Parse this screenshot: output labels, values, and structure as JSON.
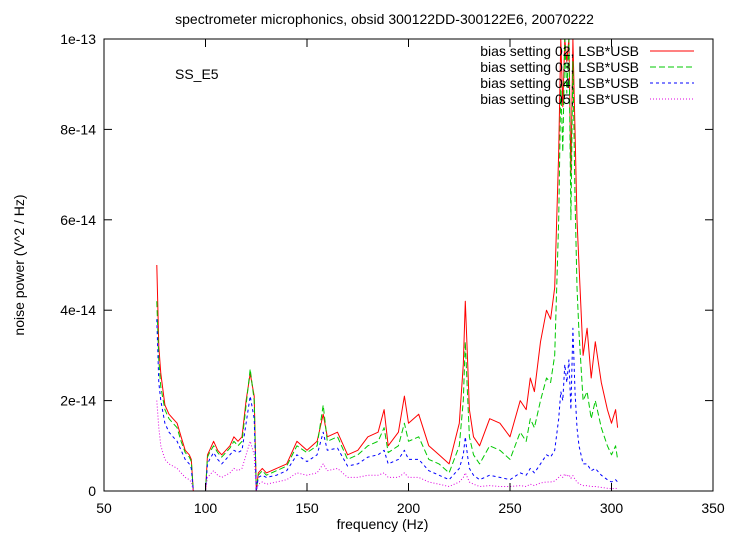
{
  "chart_data": {
    "type": "line",
    "title": "spectrometer microphonics, obsid 300122DD-300122E6, 20070222",
    "annotation": "SS_E5",
    "xlabel": "frequency (Hz)",
    "ylabel": "noise power (V^2 / Hz)",
    "xlim": [
      50,
      350
    ],
    "ylim": [
      0,
      1e-13
    ],
    "x_ticks": [
      50,
      100,
      150,
      200,
      250,
      300,
      350
    ],
    "x_tick_labels": [
      "50",
      "100",
      "150",
      "200",
      "250",
      "300",
      "350"
    ],
    "y_ticks": [
      0,
      2e-14,
      4e-14,
      6e-14,
      8e-14,
      1e-13
    ],
    "y_tick_labels": [
      "0",
      "2e-14",
      "4e-14",
      "6e-14",
      "8e-14",
      "1e-13"
    ],
    "grid": false,
    "legend_position": "top-right",
    "series": [
      {
        "name": "bias setting 02, LSB*USB",
        "color": "#ff0000",
        "dash": "solid",
        "x": [
          76,
          77,
          78,
          80,
          82,
          84,
          86,
          88,
          90,
          92,
          93,
          94,
          96,
          98,
          100,
          101,
          102,
          104,
          106,
          108,
          110,
          112,
          114,
          116,
          118,
          120,
          122,
          124,
          125,
          126,
          128,
          130,
          135,
          140,
          145,
          150,
          155,
          158,
          160,
          165,
          170,
          175,
          180,
          185,
          188,
          190,
          195,
          198,
          200,
          205,
          210,
          215,
          220,
          225,
          227,
          228,
          229,
          230,
          232,
          235,
          240,
          245,
          250,
          255,
          258,
          260,
          262,
          265,
          268,
          270,
          272,
          274,
          275,
          276,
          277,
          278,
          279,
          280,
          281,
          282,
          283,
          284,
          286,
          288,
          290,
          292,
          295,
          298,
          300,
          302,
          303
        ],
        "y": [
          5e-14,
          3.2e-14,
          2.6e-14,
          1.9e-14,
          1.7e-14,
          1.6e-14,
          1.5e-14,
          1.2e-14,
          9e-15,
          8e-15,
          7e-15,
          0,
          0,
          0,
          0,
          8e-15,
          9e-15,
          1.1e-14,
          9e-15,
          8e-15,
          9e-15,
          1e-14,
          1.2e-14,
          1.1e-14,
          1.2e-14,
          2e-14,
          2.6e-14,
          2.1e-14,
          0,
          4e-15,
          5e-15,
          4e-15,
          5e-15,
          6e-15,
          1.1e-14,
          9e-15,
          1.1e-14,
          1.7e-14,
          1.2e-14,
          1.3e-14,
          8e-15,
          9e-15,
          1.2e-14,
          1.3e-14,
          1.8e-14,
          1e-14,
          1.3e-14,
          2.1e-14,
          1.5e-14,
          1.7e-14,
          1e-14,
          8e-15,
          6e-15,
          1.5e-14,
          2.8e-14,
          4.2e-14,
          3e-14,
          1.8e-14,
          1.2e-14,
          1e-14,
          1.6e-14,
          1.5e-14,
          1.2e-14,
          2e-14,
          1.8e-14,
          2.5e-14,
          2.2e-14,
          3.3e-14,
          4e-14,
          3.8e-14,
          4.5e-14,
          7.5e-14,
          1e-13,
          8.5e-14,
          1e-13,
          9.5e-14,
          1e-13,
          7e-14,
          1e-13,
          8e-14,
          6e-14,
          5e-14,
          3e-14,
          3.6e-14,
          2.5e-14,
          3.3e-14,
          2.4e-14,
          1.8e-14,
          1.5e-14,
          1.8e-14,
          1.4e-14
        ]
      },
      {
        "name": "bias setting 03, LSB*USB",
        "color": "#00c800",
        "dash": "6,3",
        "x": [
          76,
          77,
          78,
          80,
          82,
          84,
          86,
          88,
          90,
          92,
          93,
          94,
          96,
          98,
          100,
          101,
          102,
          104,
          106,
          108,
          110,
          112,
          114,
          116,
          118,
          120,
          122,
          124,
          125,
          126,
          128,
          130,
          135,
          140,
          145,
          150,
          155,
          158,
          160,
          165,
          170,
          175,
          180,
          185,
          188,
          190,
          195,
          198,
          200,
          205,
          210,
          215,
          220,
          225,
          227,
          228,
          229,
          230,
          232,
          235,
          240,
          245,
          250,
          255,
          258,
          260,
          262,
          265,
          268,
          270,
          272,
          274,
          275,
          276,
          277,
          278,
          279,
          280,
          281,
          282,
          283,
          284,
          286,
          288,
          290,
          292,
          295,
          298,
          300,
          302,
          303
        ],
        "y": [
          4.2e-14,
          2.9e-14,
          2.3e-14,
          1.8e-14,
          1.6e-14,
          1.5e-14,
          1.4e-14,
          1.1e-14,
          8.5e-15,
          7.5e-15,
          6.5e-15,
          0,
          0,
          0,
          0,
          7.5e-15,
          8.5e-15,
          1e-14,
          8.5e-15,
          7.5e-15,
          8.5e-15,
          9.5e-15,
          1.1e-14,
          1e-14,
          1.1e-14,
          1.9e-14,
          2.7e-14,
          2e-14,
          0,
          3.5e-15,
          4.5e-15,
          3.5e-15,
          4.5e-15,
          5.5e-15,
          1e-14,
          8.5e-15,
          1e-14,
          1.9e-14,
          1.1e-14,
          1.2e-14,
          7e-15,
          8e-15,
          1e-14,
          1.1e-14,
          1.4e-14,
          8.5e-15,
          1e-14,
          1.5e-14,
          1.1e-14,
          1.2e-14,
          7e-15,
          6e-15,
          4e-15,
          1e-14,
          2e-14,
          3.3e-14,
          2.2e-14,
          1.2e-14,
          8e-15,
          6e-15,
          1e-14,
          9e-15,
          7e-15,
          1.3e-14,
          1.1e-14,
          1.6e-14,
          1.4e-14,
          2e-14,
          2.5e-14,
          2.4e-14,
          3e-14,
          6e-14,
          9e-14,
          7.5e-14,
          1e-13,
          8.8e-14,
          1e-13,
          6e-14,
          9.5e-14,
          6.5e-14,
          4.5e-14,
          3.5e-14,
          2e-14,
          2.2e-14,
          1.6e-14,
          2e-14,
          1.4e-14,
          1e-14,
          8e-15,
          1e-14,
          7e-15
        ]
      },
      {
        "name": "bias setting 04, LSB*USB",
        "color": "#0000ff",
        "dash": "3,3",
        "x": [
          76,
          77,
          78,
          80,
          82,
          84,
          86,
          88,
          90,
          92,
          93,
          94,
          96,
          98,
          100,
          101,
          102,
          104,
          106,
          108,
          110,
          112,
          114,
          116,
          118,
          120,
          122,
          124,
          125,
          126,
          128,
          130,
          135,
          140,
          145,
          150,
          155,
          158,
          160,
          165,
          170,
          175,
          180,
          185,
          188,
          190,
          195,
          198,
          200,
          205,
          210,
          215,
          220,
          225,
          227,
          228,
          229,
          230,
          232,
          235,
          240,
          245,
          250,
          255,
          258,
          260,
          262,
          265,
          268,
          270,
          272,
          274,
          275,
          276,
          277,
          278,
          279,
          280,
          281,
          282,
          283,
          284,
          286,
          288,
          290,
          292,
          295,
          298,
          300,
          302,
          303
        ],
        "y": [
          3.8e-14,
          2.4e-14,
          2e-14,
          1.5e-14,
          1.3e-14,
          1.2e-14,
          1.1e-14,
          9e-15,
          7e-15,
          6e-15,
          5e-15,
          0,
          0,
          0,
          0,
          6e-15,
          7e-15,
          8.5e-15,
          7e-15,
          6e-15,
          7e-15,
          8e-15,
          9e-15,
          8.5e-15,
          9e-15,
          1.5e-14,
          2.1e-14,
          1.6e-14,
          0,
          3e-15,
          3.5e-15,
          3e-15,
          3.5e-15,
          4.5e-15,
          8e-15,
          6.5e-15,
          8e-15,
          1.3e-14,
          9e-15,
          9.5e-15,
          5.5e-15,
          6e-15,
          7.5e-15,
          8e-15,
          9e-15,
          6e-15,
          7e-15,
          9e-15,
          7e-15,
          7e-15,
          4.5e-15,
          3.5e-15,
          2.5e-15,
          5e-15,
          8e-15,
          1.2e-14,
          8e-15,
          5e-15,
          3.5e-15,
          2.5e-15,
          3.5e-15,
          3e-15,
          2.5e-15,
          4e-15,
          3.5e-15,
          5e-15,
          4e-15,
          6e-15,
          8e-15,
          7.5e-15,
          9e-15,
          1.6e-14,
          2.2e-14,
          2e-14,
          2.8e-14,
          2.4e-14,
          2.9e-14,
          1.8e-14,
          3.6e-14,
          2.2e-14,
          1.4e-14,
          1e-14,
          6e-15,
          6e-15,
          4.5e-15,
          5e-15,
          3.5e-15,
          2.5e-15,
          2e-15,
          2.5e-15,
          2e-15
        ]
      },
      {
        "name": "bias setting 05, LSB*USB",
        "color": "#e000e0",
        "dash": "1,2",
        "x": [
          76,
          77,
          78,
          80,
          82,
          84,
          86,
          88,
          90,
          92,
          93,
          94,
          96,
          98,
          100,
          101,
          102,
          104,
          106,
          108,
          110,
          112,
          114,
          116,
          118,
          120,
          122,
          124,
          125,
          126,
          128,
          130,
          135,
          140,
          145,
          150,
          155,
          158,
          160,
          165,
          170,
          175,
          180,
          185,
          188,
          190,
          195,
          198,
          200,
          205,
          210,
          215,
          220,
          225,
          227,
          228,
          229,
          230,
          232,
          235,
          240,
          245,
          250,
          255,
          258,
          260,
          262,
          265,
          268,
          270,
          272,
          274,
          275,
          276,
          277,
          278,
          279,
          280,
          281,
          282,
          283,
          284,
          286,
          288,
          290,
          292,
          295,
          298,
          300,
          302,
          303
        ],
        "y": [
          2e-14,
          1.4e-14,
          1e-14,
          7e-15,
          6e-15,
          5.5e-15,
          5e-15,
          4e-15,
          3e-15,
          2.5e-15,
          2e-15,
          0,
          0,
          0,
          0,
          3e-15,
          3.5e-15,
          4.5e-15,
          3.5e-15,
          3e-15,
          3.5e-15,
          4e-15,
          5e-15,
          4.5e-15,
          5e-15,
          8e-15,
          1.1e-14,
          8e-15,
          0,
          1.5e-15,
          2e-15,
          1.5e-15,
          2e-15,
          2.5e-15,
          4e-15,
          3.5e-15,
          4e-15,
          6e-15,
          4.5e-15,
          5e-15,
          3e-15,
          3e-15,
          3.5e-15,
          3.5e-15,
          4e-15,
          3e-15,
          3e-15,
          4e-15,
          3e-15,
          3e-15,
          2e-15,
          1.5e-15,
          1e-15,
          2e-15,
          3e-15,
          4e-15,
          3e-15,
          2e-15,
          1.5e-15,
          1e-15,
          1.2e-15,
          1e-15,
          1e-15,
          1.2e-15,
          1e-15,
          1.5e-15,
          1.2e-15,
          1.8e-15,
          2e-15,
          2e-15,
          2.2e-15,
          3e-15,
          3.5e-15,
          3e-15,
          3.8e-15,
          3.2e-15,
          3.6e-15,
          2.8e-15,
          3.4e-15,
          2.6e-15,
          2e-15,
          1.6e-15,
          1.2e-15,
          1.2e-15,
          1e-15,
          1e-15,
          8e-16,
          6e-16,
          5e-16,
          6e-16,
          5e-16
        ]
      }
    ]
  }
}
